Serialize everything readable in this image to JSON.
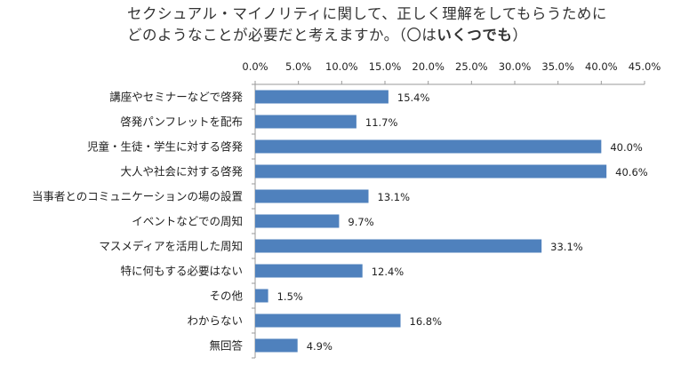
{
  "title": {
    "line1": "セクシュアル・マイノリティに関して、正しく理解をしてもらうために",
    "line2_prefix": "どのようなことが必要だと考えますか。（〇は",
    "line2_bold": "いくつでも",
    "line2_suffix": "）"
  },
  "chart_data": {
    "type": "bar",
    "orientation": "horizontal",
    "xlim": [
      0,
      45
    ],
    "x_ticks": [
      "0.0%",
      "5.0%",
      "10.0%",
      "15.0%",
      "20.0%",
      "25.0%",
      "30.0%",
      "35.0%",
      "40.0%",
      "45.0%"
    ],
    "x_tick_values": [
      0,
      5,
      10,
      15,
      20,
      25,
      30,
      35,
      40,
      45
    ],
    "categories": [
      "講座やセミナーなどで啓発",
      "啓発パンフレットを配布",
      "児童・生徒・学生に対する啓発",
      "大人や社会に対する啓発",
      "当事者とのコミュニケーションの場の設置",
      "イベントなどでの周知",
      "マスメディアを活用した周知",
      "特に何もする必要はない",
      "その他",
      "わからない",
      "無回答"
    ],
    "values": [
      15.4,
      11.7,
      40.0,
      40.6,
      13.1,
      9.7,
      33.1,
      12.4,
      1.5,
      16.8,
      4.9
    ],
    "value_labels": [
      "15.4%",
      "11.7%",
      "40.0%",
      "40.6%",
      "13.1%",
      "9.7%",
      "33.1%",
      "12.4%",
      "1.5%",
      "16.8%",
      "4.9%"
    ],
    "bar_color": "#4f81bd",
    "axis_color": "#9a9a9a",
    "grid": false,
    "legend": "none"
  }
}
